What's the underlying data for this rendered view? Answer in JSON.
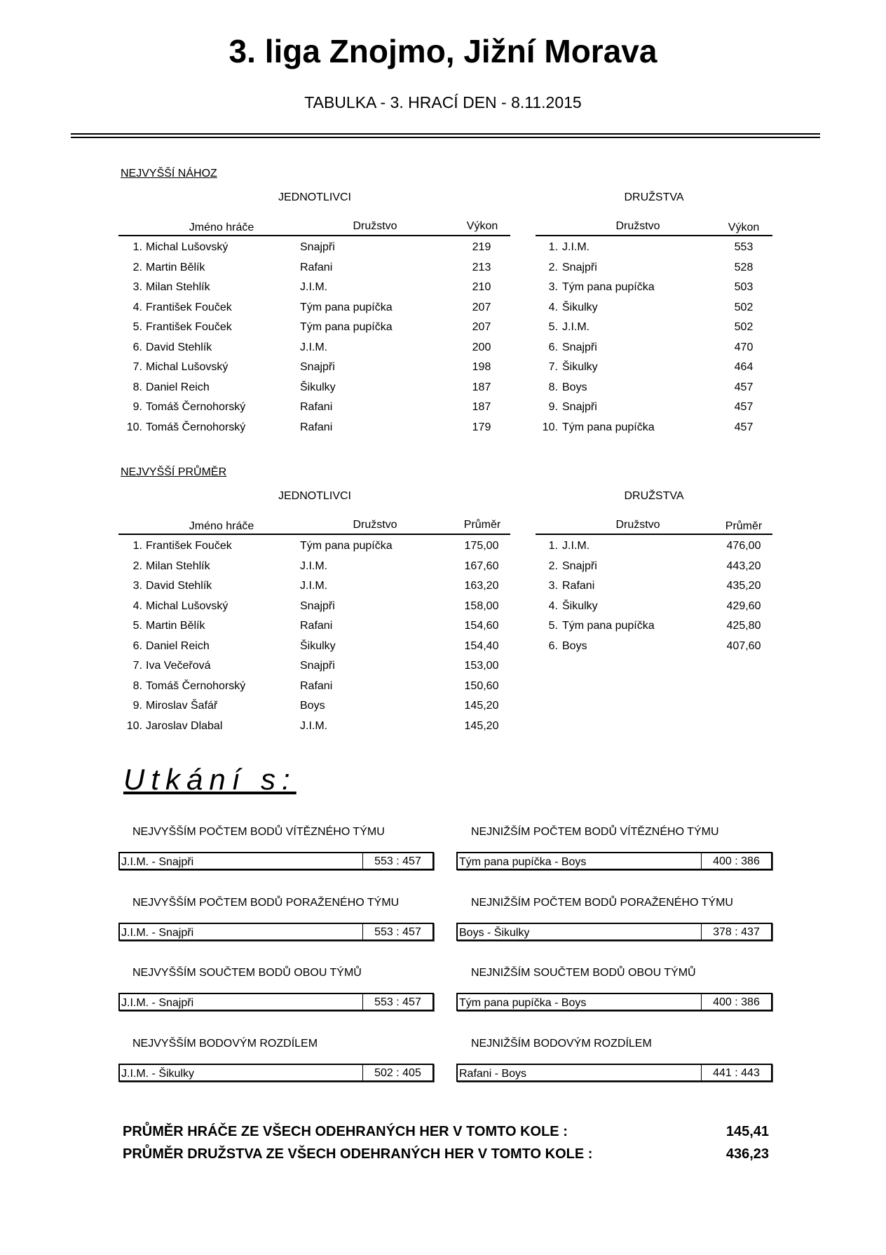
{
  "title": "3. liga Znojmo, Jižní Morava",
  "subtitle": "TABULKA - 3. HRACÍ DEN - 8.11.2015",
  "sections": [
    {
      "heading": "NEJVYŠŠÍ NÁHOZ",
      "individuals_caption": "JEDNOTLIVCI",
      "teams_caption": "DRUŽSTVA",
      "individual_headers": [
        "Jméno hráče",
        "Družstvo",
        "Výkon"
      ],
      "team_headers": [
        "Družstvo",
        "Výkon"
      ],
      "individuals": [
        [
          "1.",
          "Michal Lušovský",
          "Snajpři",
          "219"
        ],
        [
          "2.",
          "Martin Bělík",
          "Rafani",
          "213"
        ],
        [
          "3.",
          "Milan Stehlík",
          "J.I.M.",
          "210"
        ],
        [
          "4.",
          "František Fouček",
          "Tým pana pupíčka",
          "207"
        ],
        [
          "5.",
          "František Fouček",
          "Tým pana pupíčka",
          "207"
        ],
        [
          "6.",
          "David Stehlík",
          "J.I.M.",
          "200"
        ],
        [
          "7.",
          "Michal Lušovský",
          "Snajpři",
          "198"
        ],
        [
          "8.",
          "Daniel Reich",
          "Šikulky",
          "187"
        ],
        [
          "9.",
          "Tomáš Černohorský",
          "Rafani",
          "187"
        ],
        [
          "10.",
          "Tomáš Černohorský",
          "Rafani",
          "179"
        ]
      ],
      "teams": [
        [
          "1.",
          "J.I.M.",
          "553"
        ],
        [
          "2.",
          "Snajpři",
          "528"
        ],
        [
          "3.",
          "Tým pana pupíčka",
          "503"
        ],
        [
          "4.",
          "Šikulky",
          "502"
        ],
        [
          "5.",
          "J.I.M.",
          "502"
        ],
        [
          "6.",
          "Snajpři",
          "470"
        ],
        [
          "7.",
          "Šikulky",
          "464"
        ],
        [
          "8.",
          "Boys",
          "457"
        ],
        [
          "9.",
          "Snajpři",
          "457"
        ],
        [
          "10.",
          "Tým pana pupíčka",
          "457"
        ]
      ]
    },
    {
      "heading": "NEJVYŠŠÍ PRŮMĚR",
      "individuals_caption": "JEDNOTLIVCI",
      "teams_caption": "DRUŽSTVA",
      "individual_headers": [
        "Jméno hráče",
        "Družstvo",
        "Průměr"
      ],
      "team_headers": [
        "Družstvo",
        "Průměr"
      ],
      "individuals": [
        [
          "1.",
          "František Fouček",
          "Tým pana pupíčka",
          "175,00"
        ],
        [
          "2.",
          "Milan Stehlík",
          "J.I.M.",
          "167,60"
        ],
        [
          "3.",
          "David Stehlík",
          "J.I.M.",
          "163,20"
        ],
        [
          "4.",
          "Michal Lušovský",
          "Snajpři",
          "158,00"
        ],
        [
          "5.",
          "Martin Bělík",
          "Rafani",
          "154,60"
        ],
        [
          "6.",
          "Daniel Reich",
          "Šikulky",
          "154,40"
        ],
        [
          "7.",
          "Iva Večeřová",
          "Snajpři",
          "153,00"
        ],
        [
          "8.",
          "Tomáš Černohorský",
          "Rafani",
          "150,60"
        ],
        [
          "9.",
          "Miroslav Šafář",
          "Boys",
          "145,20"
        ],
        [
          "10.",
          "Jaroslav Dlabal",
          "J.I.M.",
          "145,20"
        ]
      ],
      "teams": [
        [
          "1.",
          "J.I.M.",
          "476,00"
        ],
        [
          "2.",
          "Snajpři",
          "443,20"
        ],
        [
          "3.",
          "Rafani",
          "435,20"
        ],
        [
          "4.",
          "Šikulky",
          "429,60"
        ],
        [
          "5.",
          "Tým pana pupíčka",
          "425,80"
        ],
        [
          "6.",
          "Boys",
          "407,60"
        ]
      ]
    }
  ],
  "matches_heading": "Utkání s:",
  "records": [
    {
      "label": "NEJVYŠŠÍM POČTEM BODŮ VÍTĚZNÉHO TÝMU",
      "match": "J.I.M. - Snajpři",
      "score": "553 : 457"
    },
    {
      "label": "NEJNIŽŠÍM POČTEM BODŮ VÍTĚZNÉHO TÝMU",
      "match": "Tým pana pupíčka - Boys",
      "score": "400 : 386"
    },
    {
      "label": "NEJVYŠŠÍM POČTEM BODŮ PORAŽENÉHO TÝMU",
      "match": "J.I.M. - Snajpři",
      "score": "553 : 457"
    },
    {
      "label": "NEJNIŽŠÍM POČTEM BODŮ PORAŽENÉHO TÝMU",
      "match": "Boys - Šikulky",
      "score": "378 : 437"
    },
    {
      "label": "NEJVYŠŠÍM SOUČTEM BODŮ OBOU TÝMŮ",
      "match": "J.I.M. - Snajpři",
      "score": "553 : 457"
    },
    {
      "label": "NEJNIŽŠÍM SOUČTEM BODŮ OBOU TÝMŮ",
      "match": "Tým pana pupíčka - Boys",
      "score": "400 : 386"
    },
    {
      "label": "NEJVYŠŠÍM BODOVÝM ROZDÍLEM",
      "match": "J.I.M. - Šikulky",
      "score": "502 : 405"
    },
    {
      "label": "NEJNIŽŠÍM BODOVÝM ROZDÍLEM",
      "match": "Rafani - Boys",
      "score": "441 : 443"
    }
  ],
  "summary": [
    {
      "label": "PRŮMĚR HRÁČE ZE VŠECH ODEHRANÝCH HER V TOMTO KOLE :",
      "value": "145,41"
    },
    {
      "label": "PRŮMĚR DRUŽSTVA ZE VŠECH ODEHRANÝCH HER V TOMTO KOLE :",
      "value": "436,23"
    }
  ]
}
